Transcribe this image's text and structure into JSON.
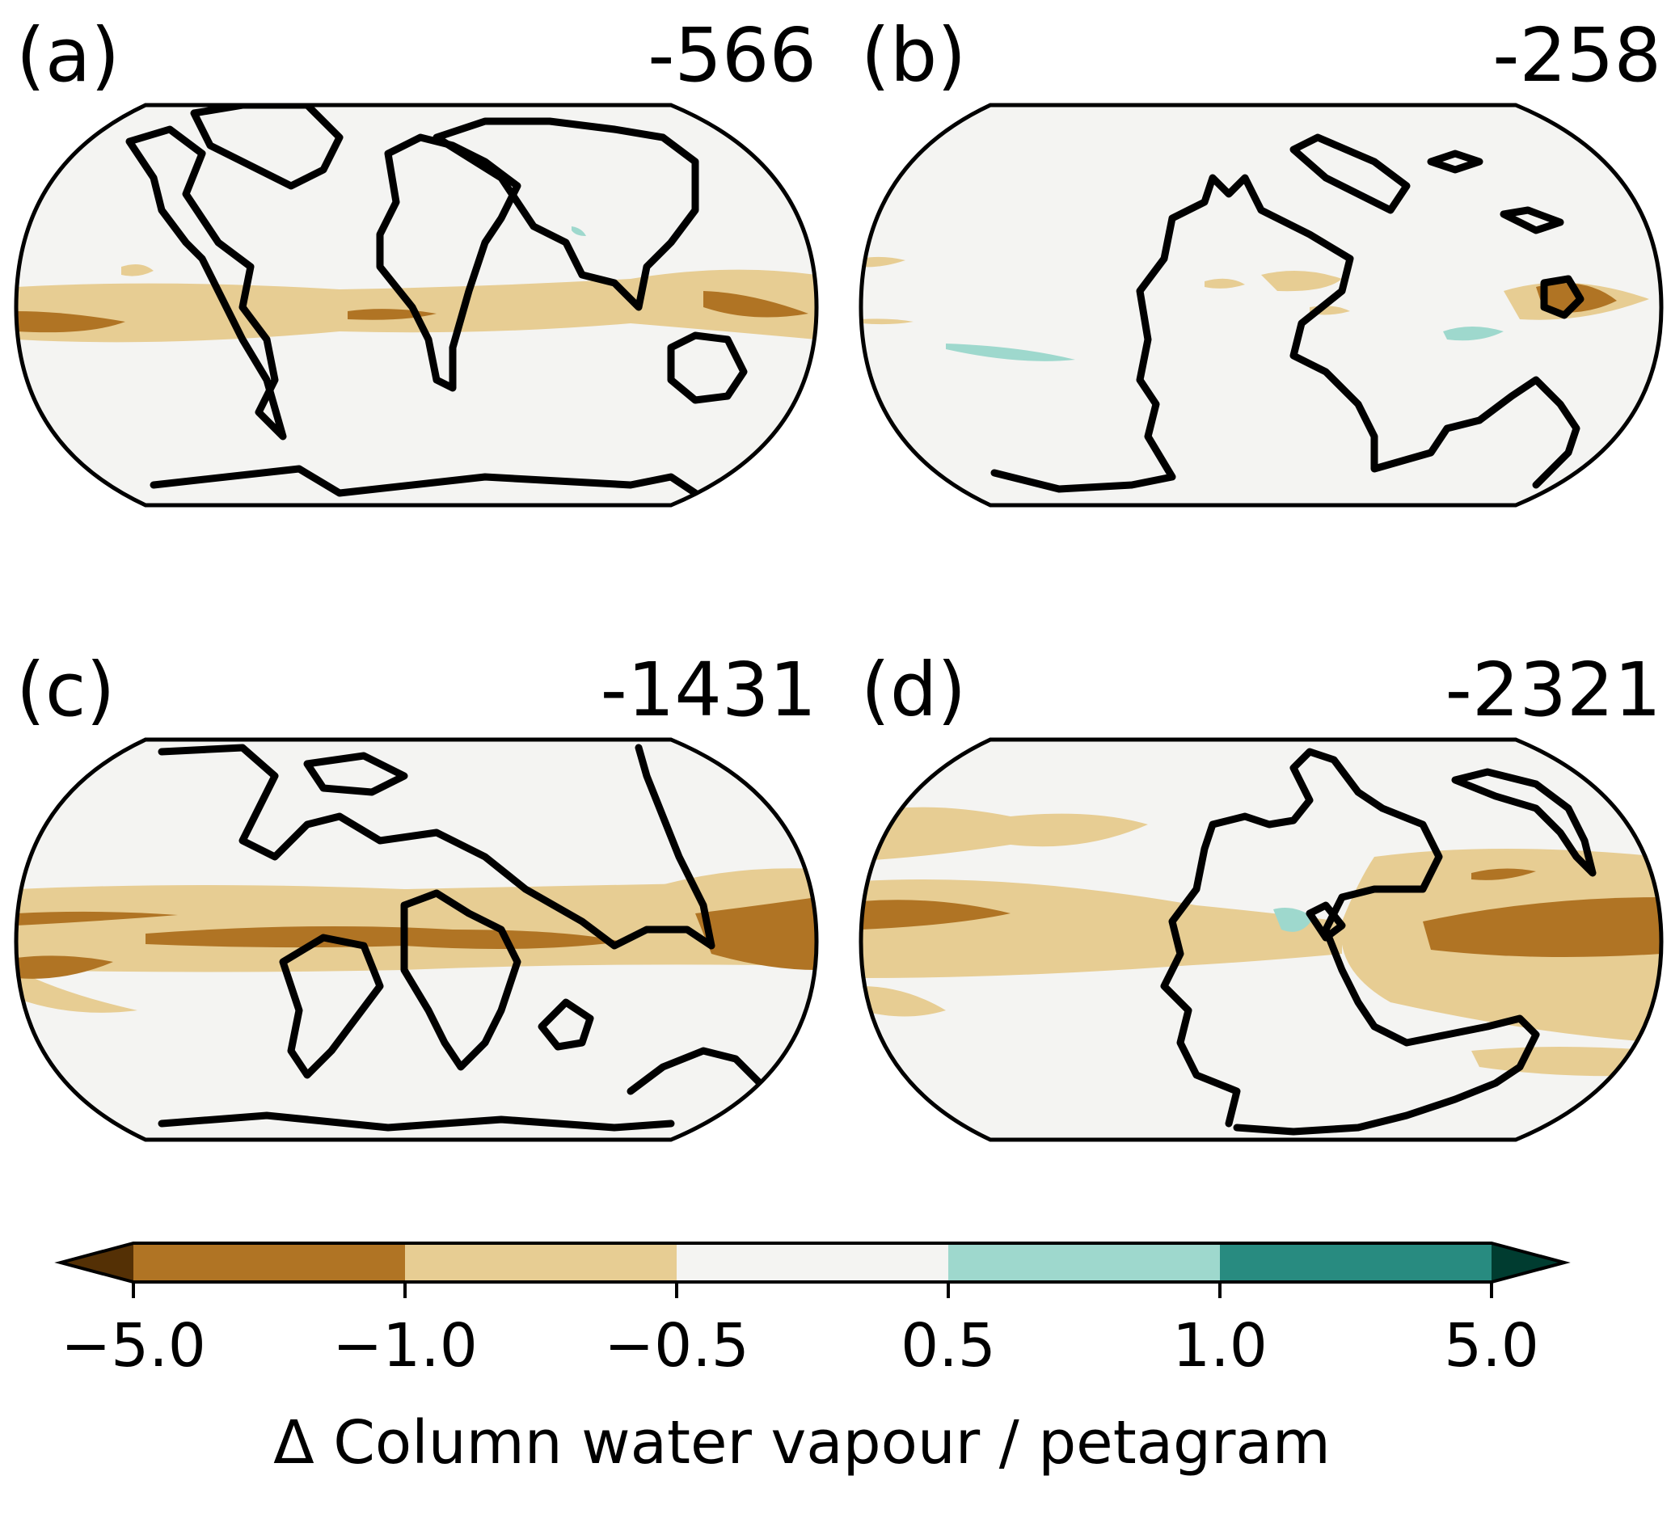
{
  "colors": {
    "lt_neg5": "#543005",
    "neg5_neg1": "#b07424",
    "neg1_neg05": "#e7cd93",
    "neg05_05": "#f4f4f2",
    "p05_1": "#9ed8cd",
    "p1_5": "#288b80",
    "gt_5": "#003c30"
  },
  "panels": [
    {
      "label": "(a)",
      "value": "-566"
    },
    {
      "label": "(b)",
      "value": "-258"
    },
    {
      "label": "(c)",
      "value": "-1431"
    },
    {
      "label": "(d)",
      "value": "-2321"
    }
  ],
  "colorbar": {
    "ticks": [
      "−5.0",
      "−1.0",
      "−0.5",
      "0.5",
      "1.0",
      "5.0"
    ],
    "boundaries": [
      -5.0,
      -1.0,
      -0.5,
      0.5,
      1.0,
      5.0
    ],
    "extend": "both",
    "label": "Δ Column water vapour / petagram"
  },
  "chart_data": {
    "type": "map",
    "panels": [
      {
        "label": "(a)",
        "total": -566
      },
      {
        "label": "(b)",
        "total": -258
      },
      {
        "label": "(c)",
        "total": -1431
      },
      {
        "label": "(d)",
        "total": -2321
      }
    ],
    "colorbar": {
      "levels": [
        -5.0,
        -1.0,
        -0.5,
        0.5,
        1.0,
        5.0
      ],
      "extend": "both",
      "label": "Δ Column water vapour / petagram"
    }
  }
}
